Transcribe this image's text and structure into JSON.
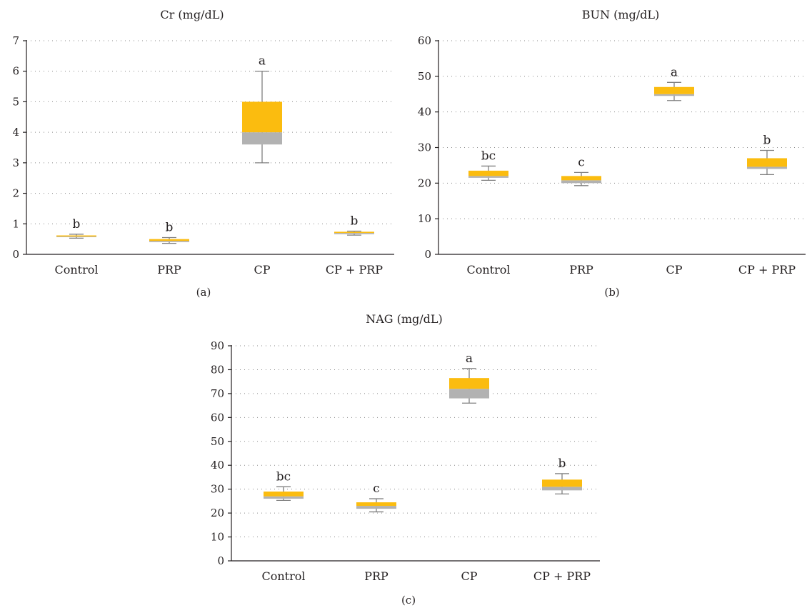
{
  "chart_data": [
    {
      "type": "box",
      "title": "Cr (mg/dL)",
      "panel_label": "(a)",
      "categories": [
        "Control",
        "PRP",
        "CP",
        "CP + PRP"
      ],
      "ylim": [
        0,
        7
      ],
      "yticks": [
        0,
        1,
        2,
        3,
        4,
        5,
        6,
        7
      ],
      "grid": true,
      "boxes": [
        {
          "min": 0.53,
          "q1": 0.57,
          "median": 0.6,
          "q3": 0.62,
          "max": 0.66,
          "letter": "b"
        },
        {
          "min": 0.36,
          "q1": 0.4,
          "median": 0.44,
          "q3": 0.5,
          "max": 0.55,
          "letter": "b"
        },
        {
          "min": 3.0,
          "q1": 3.6,
          "median": 4.0,
          "q3": 5.0,
          "max": 6.0,
          "letter": "a"
        },
        {
          "min": 0.63,
          "q1": 0.66,
          "median": 0.7,
          "q3": 0.74,
          "max": 0.76,
          "letter": "b"
        }
      ]
    },
    {
      "type": "box",
      "title": "BUN (mg/dL)",
      "panel_label": "(b)",
      "categories": [
        "Control",
        "PRP",
        "CP",
        "CP + PRP"
      ],
      "ylim": [
        0,
        60
      ],
      "yticks": [
        0,
        10,
        20,
        30,
        40,
        50,
        60
      ],
      "grid": true,
      "boxes": [
        {
          "min": 20.8,
          "q1": 21.5,
          "median": 22.0,
          "q3": 23.5,
          "max": 24.8,
          "letter": "bc"
        },
        {
          "min": 19.3,
          "q1": 20.0,
          "median": 20.8,
          "q3": 22.0,
          "max": 23.0,
          "letter": "c"
        },
        {
          "min": 43.2,
          "q1": 44.5,
          "median": 45.0,
          "q3": 47.0,
          "max": 48.3,
          "letter": "a"
        },
        {
          "min": 22.4,
          "q1": 24.0,
          "median": 24.6,
          "q3": 27.0,
          "max": 29.2,
          "letter": "b"
        }
      ]
    },
    {
      "type": "box",
      "title": "NAG (mg/dL)",
      "panel_label": "(c)",
      "categories": [
        "Control",
        "PRP",
        "CP",
        "CP + PRP"
      ],
      "ylim": [
        0,
        90
      ],
      "yticks": [
        0,
        10,
        20,
        30,
        40,
        50,
        60,
        70,
        80,
        90
      ],
      "grid": true,
      "boxes": [
        {
          "min": 25.3,
          "q1": 26.0,
          "median": 27.0,
          "q3": 29.0,
          "max": 31.0,
          "letter": "bc"
        },
        {
          "min": 20.5,
          "q1": 21.8,
          "median": 23.0,
          "q3": 24.5,
          "max": 26.0,
          "letter": "c"
        },
        {
          "min": 66.0,
          "q1": 68.0,
          "median": 72.0,
          "q3": 76.5,
          "max": 80.5,
          "letter": "a"
        },
        {
          "min": 28.0,
          "q1": 29.5,
          "median": 31.0,
          "q3": 34.0,
          "max": 36.5,
          "letter": "b"
        }
      ]
    }
  ]
}
